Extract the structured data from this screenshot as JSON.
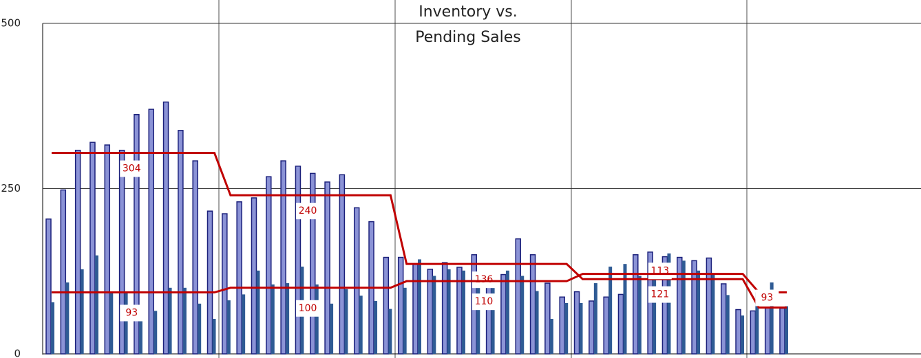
{
  "chart_data": {
    "type": "bar",
    "title": [
      "Inventory vs.",
      "Pending Sales"
    ],
    "ylim": [
      0,
      500
    ],
    "yticks": [
      0,
      250,
      500
    ],
    "grid": true,
    "series": [
      {
        "name": "Inventory",
        "color": "#8b93d6",
        "values": [
          204,
          248,
          308,
          320,
          316,
          308,
          362,
          370,
          381,
          338,
          292,
          216,
          212,
          230,
          236,
          268,
          292,
          284,
          273,
          260,
          271,
          221,
          200,
          146,
          146,
          136,
          128,
          138,
          131,
          150,
          120,
          120,
          174,
          150,
          107,
          86,
          94,
          80,
          86,
          90,
          150,
          154,
          147,
          146,
          141,
          145,
          106,
          67,
          65,
          70,
          69
        ]
      },
      {
        "name": "Pending Sales",
        "color": "#2f5b94",
        "values": [
          78,
          108,
          128,
          149,
          93,
          93,
          58,
          65,
          100,
          100,
          76,
          53,
          81,
          90,
          126,
          105,
          107,
          132,
          105,
          76,
          98,
          88,
          80,
          68,
          100,
          143,
          118,
          128,
          126,
          118,
          110,
          126,
          118,
          95,
          53,
          77,
          77,
          107,
          132,
          136,
          118,
          117,
          152,
          141,
          126,
          120,
          89,
          58,
          93,
          108,
          72
        ]
      }
    ],
    "averages": [
      {
        "color": "#c00000",
        "values": [
          304,
          240,
          136,
          113,
          70
        ],
        "value_labels": [
          "304",
          "240",
          "136",
          "113",
          null
        ]
      },
      {
        "color": "#c00000",
        "values": [
          93,
          100,
          110,
          121,
          93
        ],
        "value_labels": [
          "93",
          "100",
          "110",
          "121",
          "93"
        ]
      }
    ]
  }
}
